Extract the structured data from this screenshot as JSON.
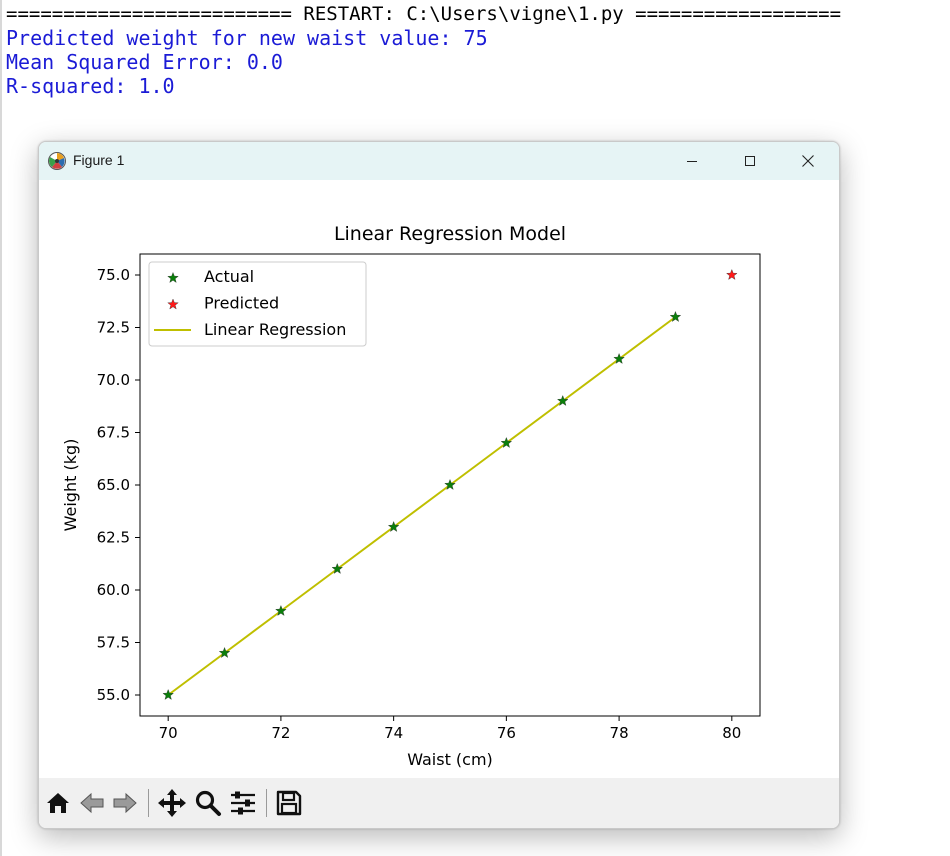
{
  "shell": {
    "restart_line": "========================= RESTART: C:\\Users\\vigne\\1.py ==================",
    "output": [
      "Predicted weight for new waist value: 75",
      "Mean Squared Error: 0.0",
      "R-squared: 1.0"
    ]
  },
  "window": {
    "title": "Figure 1",
    "controls": {
      "minimize_icon": "minimize-icon",
      "maximize_icon": "maximize-icon",
      "close_icon": "close-icon"
    }
  },
  "toolbar": {
    "tools": [
      "home-icon",
      "back-icon",
      "forward-icon",
      "pan-icon",
      "zoom-icon",
      "configure-subplots-icon",
      "save-icon"
    ]
  },
  "chart_data": {
    "type": "scatter",
    "title": "Linear Regression Model",
    "xlabel": "Waist (cm)",
    "ylabel": "Weight (kg)",
    "xlim": [
      69.5,
      80.5
    ],
    "ylim": [
      54.0,
      76.0
    ],
    "xticks": [
      70,
      72,
      74,
      76,
      78,
      80
    ],
    "yticks": [
      55.0,
      57.5,
      60.0,
      62.5,
      65.0,
      67.5,
      70.0,
      72.5,
      75.0
    ],
    "legend_position": "top-left",
    "grid": false,
    "series": [
      {
        "name": "Actual",
        "kind": "scatter",
        "marker": "star",
        "color": "#0a7f0a",
        "x": [
          70,
          71,
          72,
          73,
          74,
          75,
          76,
          77,
          78,
          79
        ],
        "y": [
          55,
          57,
          59,
          61,
          63,
          65,
          67,
          69,
          71,
          73
        ]
      },
      {
        "name": "Predicted",
        "kind": "scatter",
        "marker": "star",
        "color": "#ff1a1a",
        "x": [
          80
        ],
        "y": [
          75
        ]
      },
      {
        "name": "Linear Regression",
        "kind": "line",
        "color": "#bfbf00",
        "x": [
          70,
          71,
          72,
          73,
          74,
          75,
          76,
          77,
          78,
          79
        ],
        "y": [
          55,
          57,
          59,
          61,
          63,
          65,
          67,
          69,
          71,
          73
        ]
      }
    ]
  }
}
